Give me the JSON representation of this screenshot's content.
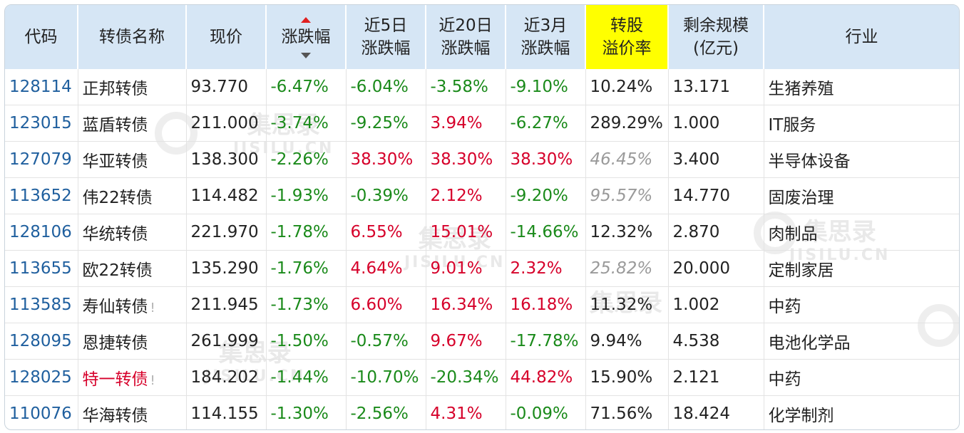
{
  "table": {
    "headers": [
      "代码",
      "转债名称",
      "现价",
      "涨跌幅",
      "近5日\n涨跌幅",
      "近20日\n涨跌幅",
      "近3月\n涨跌幅",
      "转股\n溢价率",
      "剩余规模\n(亿元)",
      "行业"
    ],
    "sort_column": "涨跌幅",
    "highlight_column": "转股溢价率",
    "highlight_color": "#ffff00",
    "up_color": "#d6002a",
    "down_color": "#1a8a1a",
    "rows": [
      {
        "code": "128114",
        "name": "正邦转债",
        "price": "93.770",
        "chg": "-6.47%",
        "chg5d": "-6.04%",
        "chg20d": "-3.58%",
        "chg3m": "-9.10%",
        "premium": "10.24%",
        "size": "13.171",
        "industry": "生猪养殖"
      },
      {
        "code": "123015",
        "name": "蓝盾转债",
        "price": "211.000",
        "chg": "-3.74%",
        "chg5d": "-9.25%",
        "chg20d": "3.94%",
        "chg3m": "-6.27%",
        "premium": "289.29%",
        "size": "1.000",
        "industry": "IT服务"
      },
      {
        "code": "127079",
        "name": "华亚转债",
        "price": "138.300",
        "chg": "-2.26%",
        "chg5d": "38.30%",
        "chg20d": "38.30%",
        "chg3m": "38.30%",
        "premium": "46.45%",
        "size": "3.400",
        "industry": "半导体设备"
      },
      {
        "code": "113652",
        "name": "伟22转债",
        "price": "114.482",
        "chg": "-1.93%",
        "chg5d": "-0.39%",
        "chg20d": "2.12%",
        "chg3m": "-9.20%",
        "premium": "95.57%",
        "size": "14.770",
        "industry": "固废治理"
      },
      {
        "code": "128106",
        "name": "华统转债",
        "price": "221.970",
        "chg": "-1.78%",
        "chg5d": "6.55%",
        "chg20d": "15.01%",
        "chg3m": "-14.66%",
        "premium": "12.32%",
        "size": "2.870",
        "industry": "肉制品"
      },
      {
        "code": "113655",
        "name": "欧22转债",
        "price": "135.290",
        "chg": "-1.76%",
        "chg5d": "4.64%",
        "chg20d": "9.01%",
        "chg3m": "2.32%",
        "premium": "25.82%",
        "size": "20.000",
        "industry": "定制家居"
      },
      {
        "code": "113585",
        "name": "寿仙转债",
        "price": "211.945",
        "chg": "-1.73%",
        "chg5d": "6.60%",
        "chg20d": "16.34%",
        "chg3m": "16.18%",
        "premium": "11.32%",
        "size": "1.002",
        "industry": "中药"
      },
      {
        "code": "128095",
        "name": "恩捷转债",
        "price": "261.999",
        "chg": "-1.50%",
        "chg5d": "-0.57%",
        "chg20d": "9.67%",
        "chg3m": "-17.78%",
        "premium": "9.94%",
        "size": "4.538",
        "industry": "电池化学品"
      },
      {
        "code": "128025",
        "name": "特一转债",
        "price": "184.202",
        "chg": "-1.44%",
        "chg5d": "-10.70%",
        "chg20d": "-20.34%",
        "chg3m": "44.82%",
        "premium": "15.90%",
        "size": "2.121",
        "industry": "中药"
      },
      {
        "code": "110076",
        "name": "华海转债",
        "price": "114.155",
        "chg": "-1.30%",
        "chg5d": "-2.56%",
        "chg20d": "4.31%",
        "chg3m": "-0.09%",
        "premium": "71.56%",
        "size": "18.424",
        "industry": "化学制剂"
      }
    ],
    "name_red_rows": [
      8
    ],
    "name_warning_rows": [
      6,
      8
    ],
    "warning_mark": "!",
    "premium_muted_rows": [
      2,
      3,
      5
    ]
  },
  "watermark": {
    "text_cn": "集思录",
    "text_en": "JISILU.CN"
  }
}
